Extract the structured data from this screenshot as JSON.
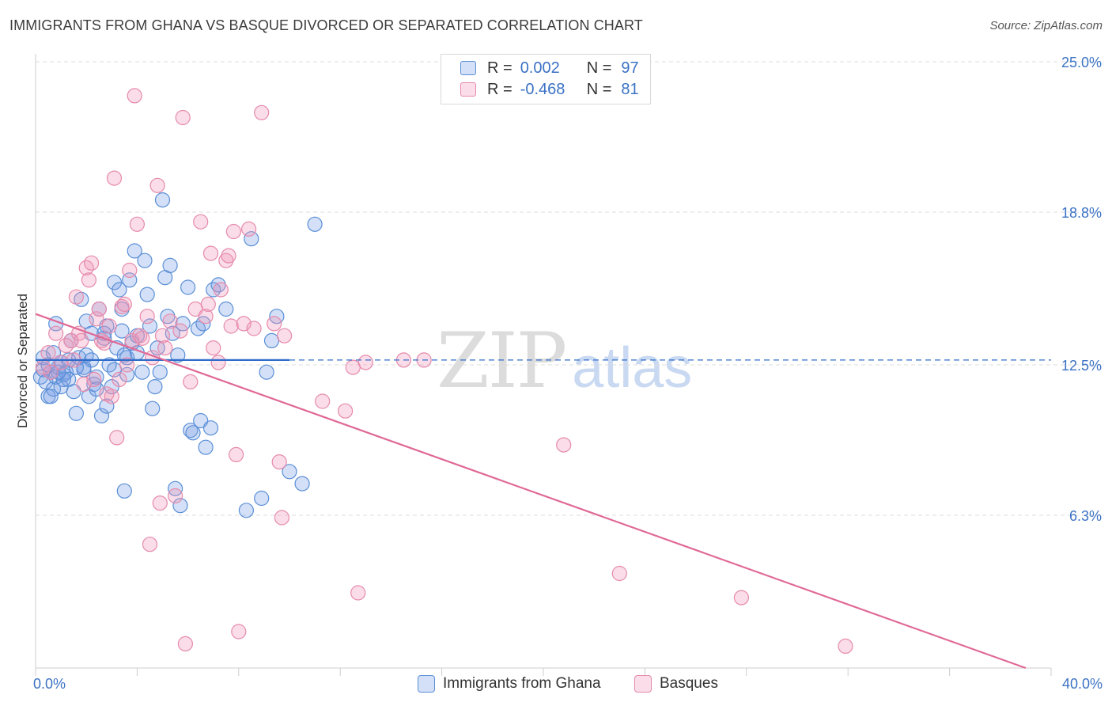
{
  "header": {
    "title": "IMMIGRANTS FROM GHANA VS BASQUE DIVORCED OR SEPARATED CORRELATION CHART",
    "source": "Source: ZipAtlas.com"
  },
  "watermark": {
    "part1": "ZIP",
    "part2": "atlas"
  },
  "legend": {
    "rows": [
      {
        "r_label": "R =",
        "r_value": "0.002",
        "n_label": "N =",
        "n_value": "97"
      },
      {
        "r_label": "R =",
        "r_value": "-0.468",
        "n_label": "N =",
        "n_value": "81"
      }
    ]
  },
  "chart_data": {
    "type": "scatter",
    "title": "IMMIGRANTS FROM GHANA VS BASQUE DIVORCED OR SEPARATED CORRELATION CHART",
    "xlabel": "",
    "ylabel": "Divorced or Separated",
    "xlim": [
      0,
      40
    ],
    "ylim": [
      0,
      25
    ],
    "x_tick_labels": [
      "0.0%",
      "40.0%"
    ],
    "y_ticks": [
      6.3,
      12.5,
      18.8,
      25.0
    ],
    "y_tick_labels": [
      "6.3%",
      "12.5%",
      "18.8%",
      "25.0%"
    ],
    "grid": true,
    "legend_position": "top-center",
    "colors": {
      "ghana_fill": "rgba(120,160,230,0.32)",
      "ghana_stroke": "#5a8fd6",
      "ghana_line": "#2f6bc9",
      "basque_fill": "rgba(240,150,185,0.32)",
      "basque_stroke": "#e68aab",
      "basque_line": "#e06996",
      "axis_label": "#3b72c4"
    },
    "series": [
      {
        "name": "Immigrants from Ghana",
        "r": 0.002,
        "n": 97,
        "trend": {
          "x": [
            0,
            10
          ],
          "y": [
            12.7,
            12.7
          ],
          "dashed_to_x": 40
        },
        "points": [
          [
            0.2,
            12.0
          ],
          [
            0.3,
            12.3
          ],
          [
            0.4,
            11.8
          ],
          [
            0.5,
            11.2
          ],
          [
            0.6,
            12.2
          ],
          [
            0.7,
            11.5
          ],
          [
            0.8,
            12.0
          ],
          [
            0.9,
            12.4
          ],
          [
            1.0,
            11.6
          ],
          [
            1.1,
            12.1
          ],
          [
            0.3,
            12.8
          ],
          [
            0.5,
            12.5
          ],
          [
            0.7,
            13.0
          ],
          [
            0.8,
            14.2
          ],
          [
            1.0,
            12.6
          ],
          [
            1.2,
            12.2
          ],
          [
            1.3,
            11.9
          ],
          [
            1.4,
            13.5
          ],
          [
            1.5,
            11.4
          ],
          [
            1.6,
            10.5
          ],
          [
            1.7,
            12.8
          ],
          [
            1.8,
            15.2
          ],
          [
            1.9,
            12.4
          ],
          [
            2.0,
            14.3
          ],
          [
            2.1,
            11.2
          ],
          [
            2.2,
            13.8
          ],
          [
            2.3,
            11.7
          ],
          [
            2.4,
            12.0
          ],
          [
            2.5,
            14.8
          ],
          [
            2.6,
            10.4
          ],
          [
            2.7,
            13.6
          ],
          [
            2.8,
            14.1
          ],
          [
            2.9,
            12.5
          ],
          [
            3.0,
            11.6
          ],
          [
            3.1,
            15.9
          ],
          [
            3.2,
            13.2
          ],
          [
            3.3,
            15.6
          ],
          [
            3.4,
            13.9
          ],
          [
            3.5,
            12.9
          ],
          [
            3.6,
            12.1
          ],
          [
            3.7,
            16.0
          ],
          [
            3.8,
            13.4
          ],
          [
            3.9,
            17.2
          ],
          [
            4.0,
            13.7
          ],
          [
            4.2,
            12.2
          ],
          [
            4.3,
            16.8
          ],
          [
            4.4,
            15.4
          ],
          [
            4.5,
            14.1
          ],
          [
            4.6,
            10.7
          ],
          [
            4.7,
            11.6
          ],
          [
            4.8,
            13.2
          ],
          [
            4.9,
            12.2
          ],
          [
            5.0,
            19.3
          ],
          [
            5.1,
            16.1
          ],
          [
            5.2,
            14.5
          ],
          [
            5.3,
            16.6
          ],
          [
            5.4,
            13.8
          ],
          [
            5.5,
            7.4
          ],
          [
            5.6,
            12.9
          ],
          [
            5.7,
            6.7
          ],
          [
            5.8,
            14.2
          ],
          [
            6.0,
            15.7
          ],
          [
            6.1,
            9.8
          ],
          [
            6.2,
            9.7
          ],
          [
            6.4,
            14.0
          ],
          [
            6.5,
            10.2
          ],
          [
            6.6,
            14.2
          ],
          [
            6.7,
            9.1
          ],
          [
            6.9,
            9.9
          ],
          [
            7.0,
            15.6
          ],
          [
            7.2,
            15.8
          ],
          [
            7.5,
            14.8
          ],
          [
            8.3,
            6.5
          ],
          [
            8.5,
            17.7
          ],
          [
            8.9,
            7.0
          ],
          [
            9.1,
            12.2
          ],
          [
            9.3,
            13.5
          ],
          [
            9.5,
            14.5
          ],
          [
            10.0,
            8.1
          ],
          [
            10.5,
            7.6
          ],
          [
            11.0,
            18.3
          ],
          [
            2.0,
            12.9
          ],
          [
            2.2,
            12.7
          ],
          [
            2.4,
            11.5
          ],
          [
            2.7,
            13.8
          ],
          [
            3.1,
            12.3
          ],
          [
            3.4,
            14.8
          ],
          [
            1.3,
            12.7
          ],
          [
            1.9,
            12.3
          ],
          [
            2.8,
            10.8
          ],
          [
            3.5,
            7.3
          ],
          [
            3.6,
            12.8
          ],
          [
            4.0,
            13.0
          ],
          [
            0.6,
            11.2
          ],
          [
            1.1,
            11.9
          ],
          [
            1.6,
            12.4
          ],
          [
            0.9,
            12.2
          ]
        ]
      },
      {
        "name": "Basques",
        "r": -0.468,
        "n": 81,
        "trend": {
          "x": [
            0,
            39
          ],
          "y": [
            14.6,
            0.0
          ]
        },
        "points": [
          [
            0.3,
            12.4
          ],
          [
            0.5,
            13.0
          ],
          [
            0.6,
            12.2
          ],
          [
            0.8,
            13.8
          ],
          [
            1.0,
            12.6
          ],
          [
            1.2,
            13.3
          ],
          [
            1.4,
            13.5
          ],
          [
            1.5,
            12.7
          ],
          [
            1.6,
            15.3
          ],
          [
            1.7,
            13.8
          ],
          [
            1.8,
            13.5
          ],
          [
            1.9,
            11.7
          ],
          [
            2.0,
            16.5
          ],
          [
            2.1,
            16.0
          ],
          [
            2.2,
            16.7
          ],
          [
            2.3,
            11.9
          ],
          [
            2.4,
            14.4
          ],
          [
            2.5,
            14.8
          ],
          [
            2.6,
            13.5
          ],
          [
            2.7,
            13.4
          ],
          [
            2.8,
            11.3
          ],
          [
            2.9,
            14.1
          ],
          [
            3.0,
            11.2
          ],
          [
            3.1,
            20.2
          ],
          [
            3.2,
            9.5
          ],
          [
            3.3,
            11.9
          ],
          [
            3.4,
            14.9
          ],
          [
            3.5,
            15.0
          ],
          [
            3.6,
            12.5
          ],
          [
            3.7,
            16.4
          ],
          [
            3.8,
            13.5
          ],
          [
            3.9,
            23.6
          ],
          [
            4.0,
            18.3
          ],
          [
            4.1,
            13.7
          ],
          [
            4.2,
            13.6
          ],
          [
            4.4,
            14.5
          ],
          [
            4.5,
            5.1
          ],
          [
            4.6,
            12.8
          ],
          [
            4.8,
            19.9
          ],
          [
            4.9,
            6.8
          ],
          [
            5.0,
            13.7
          ],
          [
            5.1,
            13.2
          ],
          [
            5.3,
            14.3
          ],
          [
            5.5,
            7.1
          ],
          [
            5.7,
            13.9
          ],
          [
            5.8,
            22.7
          ],
          [
            5.9,
            1.0
          ],
          [
            6.1,
            11.8
          ],
          [
            6.3,
            14.8
          ],
          [
            6.5,
            18.4
          ],
          [
            6.7,
            14.5
          ],
          [
            6.8,
            15.0
          ],
          [
            6.9,
            17.1
          ],
          [
            7.0,
            13.2
          ],
          [
            7.2,
            12.6
          ],
          [
            7.3,
            15.6
          ],
          [
            7.5,
            16.8
          ],
          [
            7.6,
            17.0
          ],
          [
            7.7,
            14.1
          ],
          [
            7.8,
            18.0
          ],
          [
            7.9,
            8.8
          ],
          [
            8.0,
            1.5
          ],
          [
            8.2,
            14.2
          ],
          [
            8.4,
            18.1
          ],
          [
            8.6,
            14.0
          ],
          [
            8.9,
            22.9
          ],
          [
            9.4,
            14.2
          ],
          [
            9.6,
            8.5
          ],
          [
            9.7,
            6.2
          ],
          [
            9.8,
            13.7
          ],
          [
            11.3,
            11.0
          ],
          [
            12.2,
            10.6
          ],
          [
            12.7,
            3.1
          ],
          [
            12.5,
            12.4
          ],
          [
            13.0,
            12.6
          ],
          [
            14.5,
            12.7
          ],
          [
            15.3,
            12.7
          ],
          [
            20.8,
            9.2
          ],
          [
            23.0,
            3.9
          ],
          [
            27.8,
            2.9
          ],
          [
            31.9,
            0.9
          ]
        ]
      }
    ]
  }
}
